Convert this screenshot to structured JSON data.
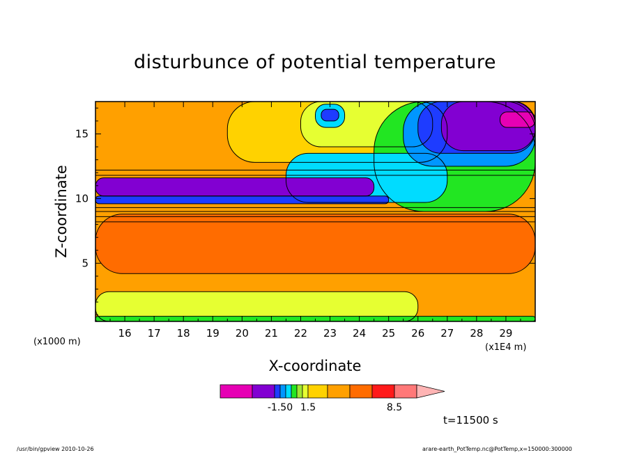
{
  "chart_data": {
    "type": "heatmap",
    "title": "disturbunce of potential temperature",
    "xlabel": "X-coordinate",
    "ylabel": "Z-coordinate",
    "x_unit_left": "(x1000 m)",
    "x_unit_right": "(x1E4 m)",
    "xlim": [
      15.0,
      30.0
    ],
    "ylim": [
      0.5,
      17.5
    ],
    "x_ticks": [
      16,
      17,
      18,
      19,
      20,
      21,
      22,
      23,
      24,
      25,
      26,
      27,
      28,
      29
    ],
    "y_ticks": [
      5,
      10,
      15
    ],
    "colorbar": {
      "colors": [
        "#e600b4",
        "#8200d2",
        "#1e3cff",
        "#0096ff",
        "#00dcff",
        "#22e622",
        "#a0e632",
        "#e6ff32",
        "#ffd200",
        "#ffa000",
        "#ff6c00",
        "#ff1a1a",
        "#ff7878",
        "#ffb4b4"
      ],
      "labels": [
        {
          "text": "-1.50",
          "value": -1.5
        },
        {
          "text": "1.5",
          "value": 1.5
        },
        {
          "text": "8.5",
          "value": 8.5
        }
      ]
    },
    "regions": [
      {
        "level": "orange",
        "color": "#ffa000",
        "x": [
          15.0,
          30.0
        ],
        "z": [
          0.5,
          17.5
        ]
      },
      {
        "level": "yellow-orange",
        "color": "#ffd200",
        "x": [
          19.5,
          27.0
        ],
        "z": [
          12.8,
          17.5
        ]
      },
      {
        "level": "yellow",
        "color": "#e6ff32",
        "x": [
          22.0,
          26.5
        ],
        "z": [
          14.0,
          17.5
        ]
      },
      {
        "level": "green",
        "color": "#22e622",
        "x": [
          24.5,
          30.0
        ],
        "z": [
          9.0,
          17.5
        ]
      },
      {
        "level": "cyan",
        "color": "#00dcff",
        "x": [
          21.5,
          27.0
        ],
        "z": [
          9.7,
          13.5
        ]
      },
      {
        "level": "light-blue",
        "color": "#0096ff",
        "x": [
          25.5,
          30.0
        ],
        "z": [
          12.5,
          17.5
        ]
      },
      {
        "level": "blue",
        "color": "#1e3cff",
        "x": [
          26.0,
          30.0
        ],
        "z": [
          13.5,
          17.5
        ]
      },
      {
        "level": "purple",
        "color": "#8200d2",
        "x": [
          26.8,
          30.0
        ],
        "z": [
          13.7,
          17.5
        ]
      },
      {
        "level": "magenta",
        "color": "#e600b4",
        "x": [
          28.8,
          30.0
        ],
        "z": [
          15.5,
          16.7
        ]
      },
      {
        "level": "cyan",
        "color": "#00dcff",
        "x": [
          22.5,
          23.5
        ],
        "z": [
          15.5,
          17.3
        ]
      },
      {
        "level": "blue",
        "color": "#1e3cff",
        "x": [
          22.7,
          23.3
        ],
        "z": [
          16.0,
          16.9
        ]
      },
      {
        "level": "purple",
        "color": "#8200d2",
        "x": [
          15.0,
          24.5
        ],
        "z": [
          10.2,
          11.6
        ]
      },
      {
        "level": "blue",
        "color": "#1e3cff",
        "x": [
          15.0,
          25.0
        ],
        "z": [
          9.6,
          10.2
        ]
      },
      {
        "level": "dark-orange",
        "color": "#ff6c00",
        "x": [
          15.0,
          30.0
        ],
        "z": [
          4.2,
          8.8
        ]
      },
      {
        "level": "yellow",
        "color": "#e6ff32",
        "x": [
          15.0,
          26.0
        ],
        "z": [
          0.5,
          2.8
        ]
      },
      {
        "level": "green",
        "color": "#22e622",
        "x": [
          15.0,
          30.0
        ],
        "z": [
          0.5,
          0.9
        ]
      }
    ]
  },
  "time_label": "t=11500 s",
  "footer": {
    "left": "/usr/bin/gpview   2010-10-26",
    "right": "arare-earth_PotTemp.nc@PotTemp,x=150000:300000"
  }
}
